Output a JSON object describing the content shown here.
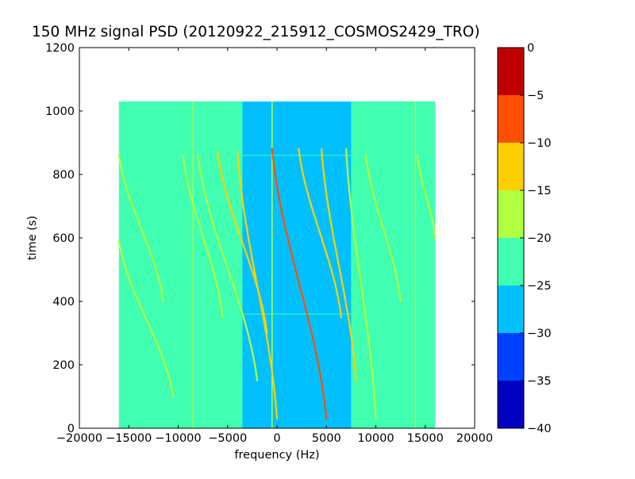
{
  "chart_data": {
    "type": "heatmap",
    "title": "150 MHz signal PSD (20120922_215912_COSMOS2429_TRO)",
    "xlabel": "frequency (Hz)",
    "ylabel": "time (s)",
    "xlim": [
      -20000,
      20000
    ],
    "ylim": [
      0,
      1200
    ],
    "x_ticks": [
      -20000,
      -15000,
      -10000,
      -5000,
      0,
      5000,
      10000,
      15000,
      20000
    ],
    "x_tick_labels": [
      "−20000",
      "−15000",
      "−10000",
      "−5000",
      "0",
      "5000",
      "10000",
      "15000",
      "20000"
    ],
    "y_ticks": [
      0,
      200,
      400,
      600,
      800,
      1000,
      1200
    ],
    "y_tick_labels": [
      "0",
      "200",
      "400",
      "600",
      "800",
      "1000",
      "1200"
    ],
    "data_extent": {
      "x": [
        -16000,
        16000
      ],
      "y": [
        0,
        1030
      ]
    },
    "background_level": -22.5,
    "colorbar": {
      "levels": [
        -40,
        -35,
        -30,
        -25,
        -20,
        -15,
        -10,
        -5,
        0
      ],
      "tick_labels": [
        "−40",
        "−35",
        "−30",
        "−25",
        "−20",
        "−15",
        "−10",
        "−5",
        "0"
      ],
      "colors": [
        "#0000c0",
        "#0040ff",
        "#00c0ff",
        "#40ffb0",
        "#b0ff40",
        "#ffd000",
        "#ff5000",
        "#c00000"
      ]
    },
    "low_noise_band": {
      "x": [
        -3500,
        7500
      ],
      "level": -27.5
    },
    "vertical_lines": [
      {
        "x": -8500,
        "level": -17.5
      },
      {
        "x": -500,
        "level": -17.5
      },
      {
        "x": 14000,
        "level": -17.5
      }
    ],
    "horizontal_lines": [
      {
        "y": 860,
        "x": [
          -3500,
          7500
        ],
        "level": -22.5
      },
      {
        "y": 360,
        "x": [
          -3500,
          7500
        ],
        "level": -22.5
      }
    ],
    "tracks": [
      {
        "x0": -16000,
        "y0": 860,
        "x1": -11500,
        "y1": 400,
        "level": -17.5
      },
      {
        "x0": -16000,
        "y0": 590,
        "x1": -10500,
        "y1": 100,
        "level": -17.5
      },
      {
        "x0": -9500,
        "y0": 860,
        "x1": -5500,
        "y1": 350,
        "level": -17.5
      },
      {
        "x0": -8000,
        "y0": 860,
        "x1": -2000,
        "y1": 150,
        "level": -17.5
      },
      {
        "x0": -6000,
        "y0": 870,
        "x1": -1000,
        "y1": 300,
        "level": -12.5
      },
      {
        "x0": -4000,
        "y0": 870,
        "x1": 0,
        "y1": 30,
        "level": -12.5
      },
      {
        "x0": -500,
        "y0": 880,
        "x1": 5000,
        "y1": 30,
        "level": -7.5
      },
      {
        "x0": 2200,
        "y0": 880,
        "x1": 6500,
        "y1": 350,
        "level": -12.5
      },
      {
        "x0": 4500,
        "y0": 880,
        "x1": 8000,
        "y1": 150,
        "level": -12.5
      },
      {
        "x0": 7000,
        "y0": 880,
        "x1": 10000,
        "y1": 30,
        "level": -17.5
      },
      {
        "x0": 9000,
        "y0": 860,
        "x1": 12500,
        "y1": 400,
        "level": -17.5
      },
      {
        "x0": 14200,
        "y0": 860,
        "x1": 16000,
        "y1": 600,
        "level": -17.5
      }
    ]
  }
}
